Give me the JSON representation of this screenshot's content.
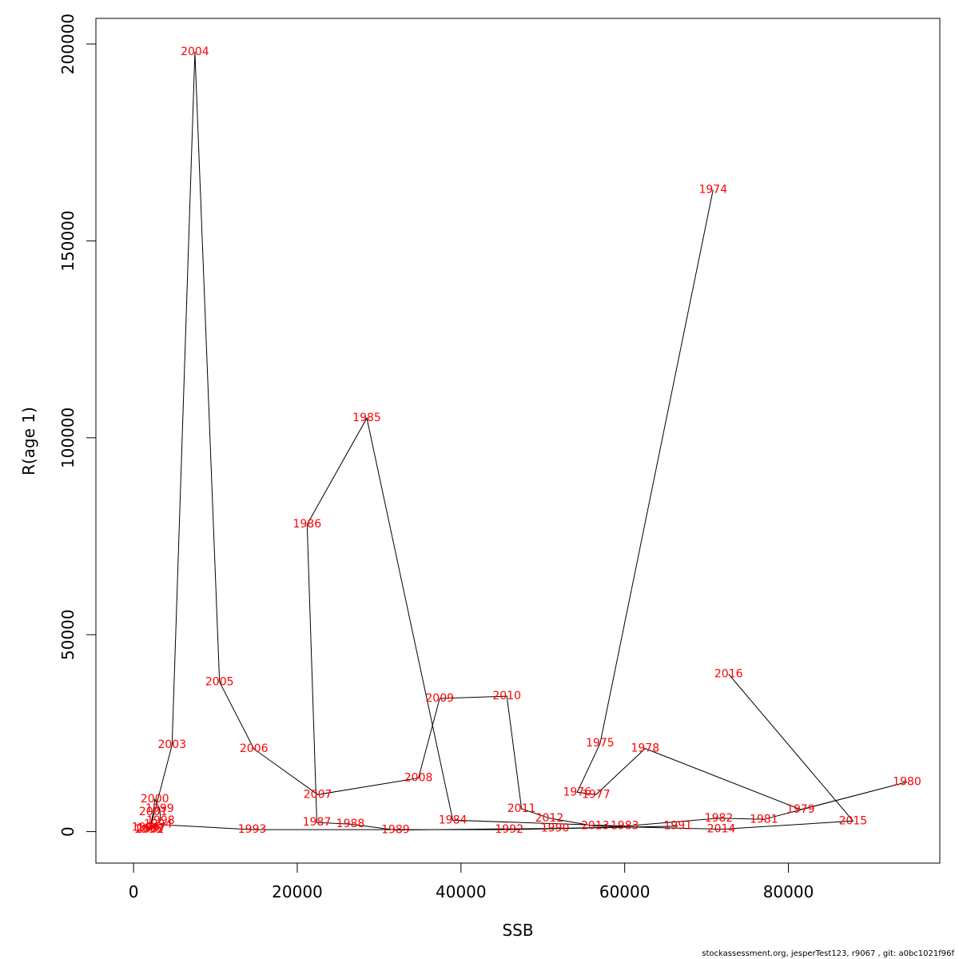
{
  "chart_data": {
    "type": "scatter",
    "xlabel": "SSB",
    "ylabel": "R(age 1)",
    "xlim": [
      -4600,
      98500
    ],
    "ylim": [
      -8000,
      206500
    ],
    "xticks": [
      0,
      20000,
      40000,
      60000,
      80000
    ],
    "xtick_labels": [
      "0",
      "20000",
      "40000",
      "60000",
      "80000"
    ],
    "yticks": [
      0,
      50000,
      100000,
      150000,
      200000
    ],
    "ytick_labels": [
      "0",
      "50000",
      "100000",
      "150000",
      "200000"
    ],
    "grid": false,
    "legend": "none",
    "line_color": "#000000",
    "label_color": "#ff0000",
    "points": [
      {
        "year": "1974",
        "x": 70800,
        "y": 163000
      },
      {
        "year": "1975",
        "x": 57000,
        "y": 22400
      },
      {
        "year": "1976",
        "x": 54200,
        "y": 10000
      },
      {
        "year": "1977",
        "x": 56500,
        "y": 9400
      },
      {
        "year": "1978",
        "x": 62500,
        "y": 21100
      },
      {
        "year": "1979",
        "x": 81500,
        "y": 5600
      },
      {
        "year": "1980",
        "x": 94500,
        "y": 12600
      },
      {
        "year": "1981",
        "x": 77000,
        "y": 3100
      },
      {
        "year": "1982",
        "x": 71500,
        "y": 3400
      },
      {
        "year": "1983",
        "x": 60000,
        "y": 1400
      },
      {
        "year": "1984",
        "x": 39000,
        "y": 2900
      },
      {
        "year": "1985",
        "x": 28500,
        "y": 105000
      },
      {
        "year": "1986",
        "x": 21200,
        "y": 78000
      },
      {
        "year": "1987",
        "x": 22400,
        "y": 2300
      },
      {
        "year": "1988",
        "x": 26500,
        "y": 1900
      },
      {
        "year": "1989",
        "x": 32000,
        "y": 400
      },
      {
        "year": "1990",
        "x": 51500,
        "y": 800
      },
      {
        "year": "1991",
        "x": 66500,
        "y": 1400
      },
      {
        "year": "1992",
        "x": 45900,
        "y": 500
      },
      {
        "year": "1993",
        "x": 14500,
        "y": 500
      },
      {
        "year": "1994",
        "x": 3000,
        "y": 1800
      },
      {
        "year": "1995",
        "x": 1800,
        "y": 500
      },
      {
        "year": "1996",
        "x": 1500,
        "y": 1000
      },
      {
        "year": "1997",
        "x": 2200,
        "y": 800
      },
      {
        "year": "1998",
        "x": 3300,
        "y": 2800
      },
      {
        "year": "1999",
        "x": 3200,
        "y": 5800
      },
      {
        "year": "2000",
        "x": 2600,
        "y": 8200
      },
      {
        "year": "2001",
        "x": 2400,
        "y": 5000
      },
      {
        "year": "2002",
        "x": 2000,
        "y": 500
      },
      {
        "year": "2003",
        "x": 4700,
        "y": 22000
      },
      {
        "year": "2004",
        "x": 7500,
        "y": 198000
      },
      {
        "year": "2005",
        "x": 10500,
        "y": 38000
      },
      {
        "year": "2006",
        "x": 14700,
        "y": 21000
      },
      {
        "year": "2007",
        "x": 22500,
        "y": 9400
      },
      {
        "year": "2008",
        "x": 34800,
        "y": 13600
      },
      {
        "year": "2009",
        "x": 37400,
        "y": 33800
      },
      {
        "year": "2010",
        "x": 45600,
        "y": 34400
      },
      {
        "year": "2011",
        "x": 47400,
        "y": 5800
      },
      {
        "year": "2012",
        "x": 50800,
        "y": 3400
      },
      {
        "year": "2013",
        "x": 56400,
        "y": 1400
      },
      {
        "year": "2014",
        "x": 71800,
        "y": 600
      },
      {
        "year": "2015",
        "x": 87900,
        "y": 2700
      },
      {
        "year": "2016",
        "x": 72700,
        "y": 40000
      }
    ],
    "label_positions_note_removed": true
  },
  "footer": {
    "text": "stockassessment.org, jesperTest123, r9067 , git: a0bc1021f96f"
  }
}
